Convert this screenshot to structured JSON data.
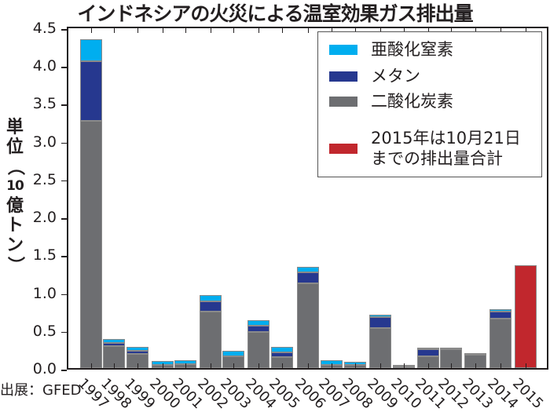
{
  "chart_data": {
    "type": "bar",
    "stacked": true,
    "title": "インドネシアの火災による温室効果ガス排出量",
    "ylabel": "単位（10億トン）",
    "xlabel": "",
    "ylim": [
      0,
      4.5
    ],
    "yticks": [
      "0.0",
      "0.5",
      "1.0",
      "1.5",
      "2.0",
      "2.5",
      "3.0",
      "3.5",
      "4.0",
      "4.5"
    ],
    "grid": false,
    "legend_position": "upper right",
    "categories": [
      "1997",
      "1998",
      "1999",
      "2000",
      "2001",
      "2002",
      "2003",
      "2004",
      "2005",
      "2006",
      "2007",
      "2008",
      "2009",
      "2010",
      "2011",
      "2012",
      "2013",
      "2014",
      "2015"
    ],
    "series": [
      {
        "name": "二酸化炭素",
        "color": "#6d6e71",
        "values": [
          3.27,
          0.29,
          0.19,
          0.04,
          0.05,
          0.75,
          0.16,
          0.48,
          0.15,
          1.12,
          0.04,
          0.04,
          0.53,
          0.02,
          0.16,
          0.25,
          0.18,
          0.65,
          0
        ]
      },
      {
        "name": "メタン",
        "color": "#26388f",
        "values": [
          0.78,
          0.04,
          0.04,
          0,
          0,
          0.13,
          0,
          0.08,
          0.06,
          0.14,
          0,
          0,
          0.14,
          0,
          0.09,
          0,
          0,
          0.1,
          0
        ]
      },
      {
        "name": "亜酸化窒素",
        "color": "#00aeef",
        "values": [
          0.29,
          0.05,
          0.05,
          0.05,
          0.05,
          0.08,
          0.07,
          0.07,
          0.07,
          0.08,
          0.06,
          0.04,
          0.04,
          0.02,
          0.02,
          0.02,
          0.02,
          0.03,
          0
        ]
      },
      {
        "name": "2015年は10月21日までの排出量合計",
        "color": "#c1272d",
        "values": [
          0,
          0,
          0,
          0,
          0,
          0,
          0,
          0,
          0,
          0,
          0,
          0,
          0,
          0,
          0,
          0,
          0,
          0,
          1.36
        ]
      }
    ],
    "annotations": [
      "出展：GFED"
    ]
  },
  "legend": {
    "items": [
      {
        "label": "亜酸化窒素",
        "color": "#00aeef"
      },
      {
        "label": "メタン",
        "color": "#26388f"
      },
      {
        "label": "二酸化炭素",
        "color": "#6d6e71"
      },
      {
        "label": "2015年は10月21日",
        "label2": "までの排出量合計",
        "color": "#c1272d"
      }
    ]
  },
  "ylabel_lines": [
    "単",
    "位",
    "（",
    "10",
    "億",
    "ト",
    "ン",
    "）"
  ],
  "source": "出展：GFED"
}
